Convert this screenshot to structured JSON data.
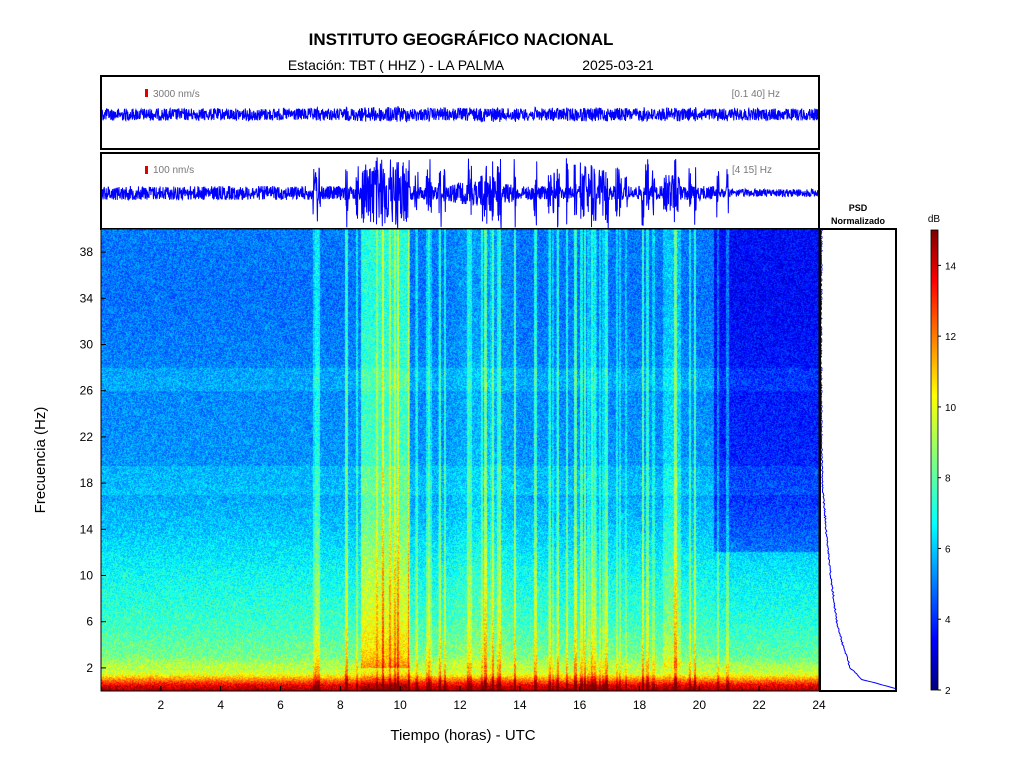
{
  "header": {
    "title": "INSTITUTO GEOGRÁFICO NACIONAL",
    "station_label": "Estación:  TBT ( HHZ ) - LA PALMA",
    "date": "2025-03-21"
  },
  "trace_top": {
    "scale_label": "3000 nm/s",
    "band_label": "[0.1 40] Hz",
    "scale_color": "#e00000"
  },
  "trace_bottom": {
    "scale_label": "100 nm/s",
    "band_label": "[4 15] Hz",
    "scale_color": "#e00000"
  },
  "psd": {
    "title_line1": "PSD",
    "title_line2": "Normalizado"
  },
  "colorbar": {
    "unit": "dB",
    "ticks": [
      2,
      4,
      6,
      8,
      10,
      12,
      14
    ],
    "range": [
      2,
      15
    ],
    "colormap": "jet"
  },
  "chart_data": {
    "type": "heatmap",
    "xlabel": "Tiempo (horas) - UTC",
    "ylabel": "Frecuencia  (Hz)",
    "xlim": [
      0,
      24
    ],
    "ylim": [
      0,
      40
    ],
    "xticks": [
      2,
      4,
      6,
      8,
      10,
      12,
      14,
      16,
      18,
      20,
      22,
      24
    ],
    "yticks": [
      2,
      6,
      10,
      14,
      18,
      22,
      26,
      30,
      34,
      38
    ],
    "background_level_db": [
      {
        "freq": 0.5,
        "db": 13.5
      },
      {
        "freq": 1.5,
        "db": 9.5
      },
      {
        "freq": 3,
        "db": 8
      },
      {
        "freq": 6,
        "db": 7.2
      },
      {
        "freq": 10,
        "db": 6.6
      },
      {
        "freq": 14,
        "db": 5.8
      },
      {
        "freq": 18,
        "db": 5.2
      },
      {
        "freq": 26,
        "db": 5
      },
      {
        "freq": 34,
        "db": 4.7
      },
      {
        "freq": 40,
        "db": 4.8
      }
    ],
    "high_activity_intervals_h": [
      [
        8.7,
        10.3
      ],
      [
        18.8,
        19.4
      ]
    ],
    "quiet_interval_h": [
      20.5,
      24
    ],
    "psd_profile": [
      {
        "freq": 0.2,
        "value": 1.0
      },
      {
        "freq": 1,
        "value": 0.55
      },
      {
        "freq": 2,
        "value": 0.4
      },
      {
        "freq": 4,
        "value": 0.3
      },
      {
        "freq": 6,
        "value": 0.22
      },
      {
        "freq": 10,
        "value": 0.14
      },
      {
        "freq": 14,
        "value": 0.08
      },
      {
        "freq": 18,
        "value": 0.03
      },
      {
        "freq": 22,
        "value": 0.02
      },
      {
        "freq": 30,
        "value": 0.015
      },
      {
        "freq": 40,
        "value": 0.02
      }
    ]
  }
}
